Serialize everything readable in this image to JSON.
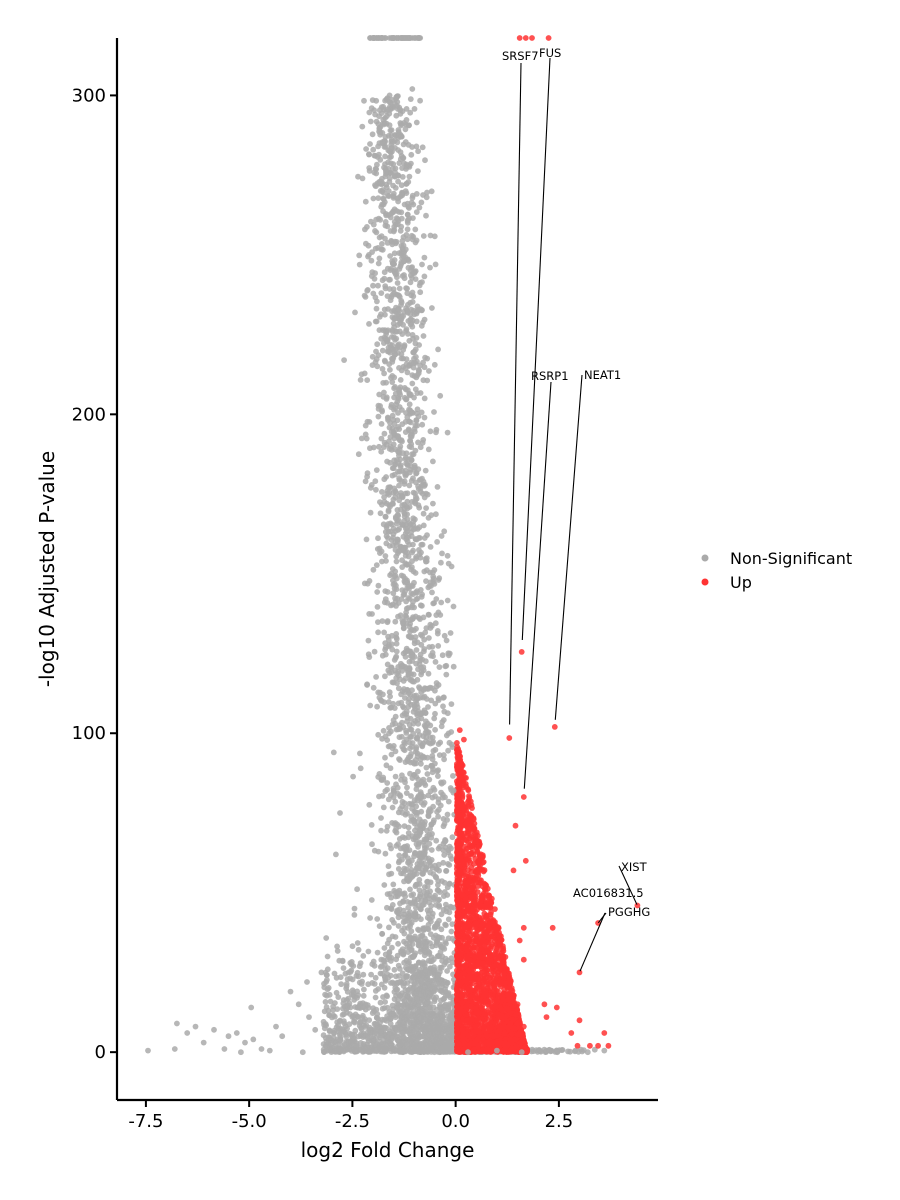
{
  "chart_data": {
    "type": "scatter",
    "title": "",
    "xlabel": "log2 Fold Change",
    "ylabel": "-log10 Adjusted P-value",
    "xlim": [
      -8.2,
      4.9
    ],
    "ylim": [
      -15,
      318
    ],
    "xticks": [
      -7.5,
      -5.0,
      -2.5,
      0.0,
      2.5
    ],
    "xtick_labels": [
      "-7.5",
      "-5.0",
      "-2.5",
      "0.0",
      "2.5"
    ],
    "yticks": [
      0,
      100,
      200,
      300
    ],
    "ytick_labels": [
      "0",
      "100",
      "200",
      "300"
    ],
    "grid": false,
    "legend_position": "right",
    "colors": {
      "non_significant": "#aaaaaa",
      "up": "#ff3333"
    },
    "series": [
      {
        "name": "Non-Significant",
        "note": "dense cloud of several thousand points, shown here as representative sample",
        "points": [
          [
            -7.45,
            0.5
          ],
          [
            -6.8,
            1.0
          ],
          [
            -6.75,
            9.0
          ],
          [
            -6.5,
            6.0
          ],
          [
            -6.3,
            8.0
          ],
          [
            -6.1,
            3.0
          ],
          [
            -5.85,
            7.0
          ],
          [
            -5.6,
            1.0
          ],
          [
            -5.5,
            5.0
          ],
          [
            -5.3,
            6.0
          ],
          [
            -5.2,
            0.0
          ],
          [
            -5.1,
            3.0
          ],
          [
            -4.95,
            14.0
          ],
          [
            -4.9,
            4.0
          ],
          [
            -4.7,
            1.0
          ],
          [
            -4.5,
            0.5
          ],
          [
            -4.35,
            8.0
          ],
          [
            -4.2,
            5.0
          ],
          [
            -4.0,
            19.0
          ],
          [
            -3.8,
            15.0
          ],
          [
            -3.7,
            0.0
          ],
          [
            -3.6,
            22.0
          ],
          [
            -3.55,
            11.0
          ],
          [
            -3.4,
            7.0
          ],
          [
            -3.25,
            25.0
          ],
          [
            -3.1,
            30.0
          ],
          [
            -3.05,
            18.0
          ],
          [
            -2.95,
            94.0
          ],
          [
            -2.9,
            62.0
          ],
          [
            -2.8,
            75.0
          ],
          [
            -2.7,
            217.0
          ],
          [
            -2.55,
            28.0
          ],
          [
            -2.45,
            45.0
          ],
          [
            -2.3,
            89.0
          ],
          [
            -2.2,
            147.0
          ],
          [
            -2.1,
            250.0
          ],
          [
            -1.95,
            294.0
          ],
          [
            -1.8,
            238.0
          ],
          [
            -1.7,
            287.0
          ],
          [
            -1.6,
            300.0
          ],
          [
            -1.55,
            203.0
          ],
          [
            -1.45,
            271.0
          ],
          [
            -1.35,
            226.0
          ],
          [
            -1.25,
            248.0
          ],
          [
            -1.15,
            261.0
          ],
          [
            -1.05,
            302.0
          ],
          [
            -0.95,
            284.0
          ],
          [
            -0.85,
            233.0
          ],
          [
            -0.75,
            205.0
          ],
          [
            -0.65,
            189.0
          ],
          [
            -0.55,
            172.0
          ],
          [
            -0.45,
            160.0
          ],
          [
            -0.35,
            141.0
          ],
          [
            -0.25,
            121.0
          ],
          [
            -0.15,
            97.0
          ],
          [
            -0.05,
            82.0
          ],
          [
            0.3,
            0.0
          ],
          [
            1.0,
            0.5
          ],
          [
            1.6,
            0.0
          ],
          [
            2.2,
            0.5
          ],
          [
            2.9,
            0.5
          ],
          [
            3.2,
            0.0
          ],
          [
            3.6,
            0.5
          ]
        ]
      },
      {
        "name": "Up",
        "note": "dense wedge from x 0 to ~1.7, y 0 to ~102, plus labelled outliers",
        "points": [
          [
            0.1,
            101.0
          ],
          [
            0.2,
            98.0
          ],
          [
            0.15,
            90.0
          ],
          [
            0.25,
            86.0
          ],
          [
            0.3,
            70.0
          ],
          [
            0.4,
            64.0
          ],
          [
            0.55,
            60.0
          ],
          [
            0.65,
            52.0
          ],
          [
            0.75,
            47.0
          ],
          [
            0.85,
            42.0
          ],
          [
            1.0,
            37.0
          ],
          [
            1.15,
            30.0
          ],
          [
            1.3,
            22.0
          ],
          [
            1.5,
            15.0
          ],
          [
            1.65,
            8.0
          ],
          [
            1.05,
            37.5
          ],
          [
            1.4,
            57.0
          ],
          [
            1.45,
            71.0
          ],
          [
            1.55,
            35.0
          ],
          [
            1.65,
            29.0
          ],
          [
            1.7,
            60.0
          ],
          [
            1.65,
            39.0
          ],
          [
            2.15,
            15.0
          ],
          [
            2.2,
            11.0
          ],
          [
            2.35,
            39.0
          ],
          [
            2.45,
            14.0
          ],
          [
            2.8,
            6.0
          ],
          [
            2.95,
            2.0
          ],
          [
            3.0,
            10.0
          ],
          [
            3.25,
            2.0
          ],
          [
            3.45,
            2.0
          ],
          [
            3.6,
            6.0
          ],
          [
            3.7,
            2.0
          ],
          [
            1.3,
            98.5
          ],
          [
            1.6,
            125.5
          ],
          [
            2.4,
            102.0
          ],
          [
            1.65,
            80.0
          ],
          [
            4.4,
            46.0
          ],
          [
            3.45,
            40.5
          ],
          [
            3.0,
            25.0
          ],
          [
            1.55,
            318.0
          ],
          [
            1.7,
            318.0
          ],
          [
            1.85,
            318.0
          ],
          [
            2.25,
            318.0
          ]
        ]
      }
    ],
    "annotations": [
      {
        "label": "SRSF7",
        "x": 1.3,
        "y": 98.5
      },
      {
        "label": "FUS",
        "x": 1.6,
        "y": 125.5
      },
      {
        "label": "RSRP1",
        "x": 1.65,
        "y": 80.0
      },
      {
        "label": "NEAT1",
        "x": 2.4,
        "y": 102.0
      },
      {
        "label": "XIST",
        "x": 4.4,
        "y": 46.0
      },
      {
        "label": "AC016831.5",
        "x": 3.45,
        "y": 40.5
      },
      {
        "label": "PGGHG",
        "x": 3.0,
        "y": 25.0
      }
    ]
  }
}
